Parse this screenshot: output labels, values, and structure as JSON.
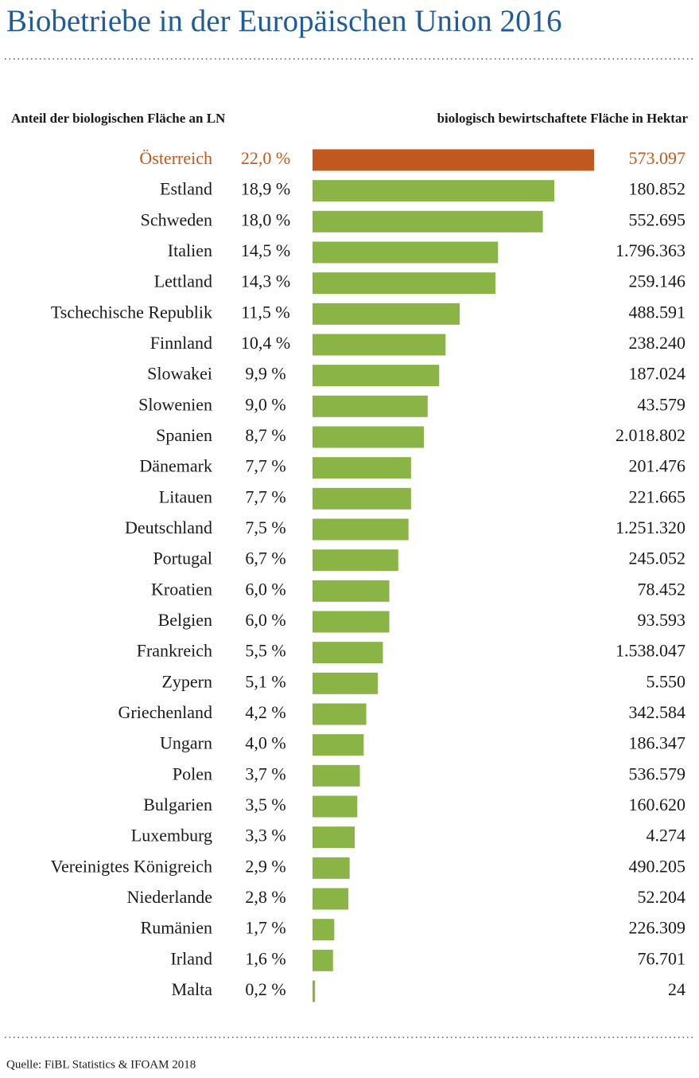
{
  "chart_data": {
    "type": "bar",
    "orientation": "horizontal",
    "title": "Biobetriebe in der Europäischen Union 2016",
    "source": "Quelle: FiBL Statistics & IFOAM 2018",
    "categories": [
      "Österreich",
      "Estland",
      "Schweden",
      "Italien",
      "Lettland",
      "Tschechische Republik",
      "Finnland",
      "Slowakei",
      "Slowenien",
      "Spanien",
      "Dänemark",
      "Litauen",
      "Deutschland",
      "Portugal",
      "Kroatien",
      "Belgien",
      "Frankreich",
      "Zypern",
      "Griechenland",
      "Ungarn",
      "Polen",
      "Bulgarien",
      "Luxemburg",
      "Vereinigtes Königreich",
      "Niederlande",
      "Rumänien",
      "Irland",
      "Malta"
    ],
    "xlim": [
      0,
      22
    ],
    "series": [
      {
        "name": "Anteil der biologischen Fläche an LN",
        "color": "#8ab446",
        "colors": [
          "#c0581f",
          "#8ab446",
          "#8ab446",
          "#8ab446",
          "#8ab446",
          "#8ab446",
          "#8ab446",
          "#8ab446",
          "#8ab446",
          "#8ab446",
          "#8ab446",
          "#8ab446",
          "#8ab446",
          "#8ab446",
          "#8ab446",
          "#8ab446",
          "#8ab446",
          "#8ab446",
          "#8ab446",
          "#8ab446",
          "#8ab446",
          "#8ab446",
          "#8ab446",
          "#8ab446",
          "#8ab446",
          "#8ab446",
          "#8ab446",
          "#8ab446"
        ],
        "values": [
          22.0,
          18.9,
          18.0,
          14.5,
          14.3,
          11.5,
          10.4,
          9.9,
          9.0,
          8.7,
          7.7,
          7.7,
          7.5,
          6.7,
          6.0,
          6.0,
          5.5,
          5.1,
          4.2,
          4.0,
          3.7,
          3.5,
          3.3,
          2.9,
          2.8,
          1.7,
          1.6,
          0.2
        ],
        "value_labels": [
          "22,0 %",
          "18,9 %",
          "18,0 %",
          "14,5 %",
          "14,3 %",
          "11,5 %",
          "10,4 %",
          "9,9 %",
          "9,0 %",
          "8,7 %",
          "7,7 %",
          "7,7 %",
          "7,5 %",
          "6,7 %",
          "6,0 %",
          "6,0 %",
          "5,5 %",
          "5,1 %",
          "4,2 %",
          "4,0 %",
          "3,7 %",
          "3,5 %",
          "3,3 %",
          "2,9 %",
          "2,8 %",
          "1,7 %",
          "1,6 %",
          "0,2 %"
        ]
      },
      {
        "name": "biologisch bewirtschaftete Fläche in Hektar",
        "values": [
          573097,
          180852,
          552695,
          1796363,
          259146,
          488591,
          238240,
          187024,
          43579,
          2018802,
          201476,
          221665,
          1251320,
          245052,
          78452,
          93593,
          1538047,
          5550,
          342584,
          186347,
          536579,
          160620,
          4274,
          490205,
          52204,
          226309,
          76701,
          24
        ],
        "value_labels": [
          "573.097",
          "180.852",
          "552.695",
          "1.796.363",
          "259.146",
          "488.591",
          "238.240",
          "187.024",
          "43.579",
          "2.018.802",
          "201.476",
          "221.665",
          "1.251.320",
          "245.052",
          "78.452",
          "93.593",
          "1.538.047",
          "5.550",
          "342.584",
          "186.347",
          "536.579",
          "160.620",
          "4.274",
          "490.205",
          "52.204",
          "226.309",
          "76.701",
          "24"
        ]
      }
    ]
  }
}
